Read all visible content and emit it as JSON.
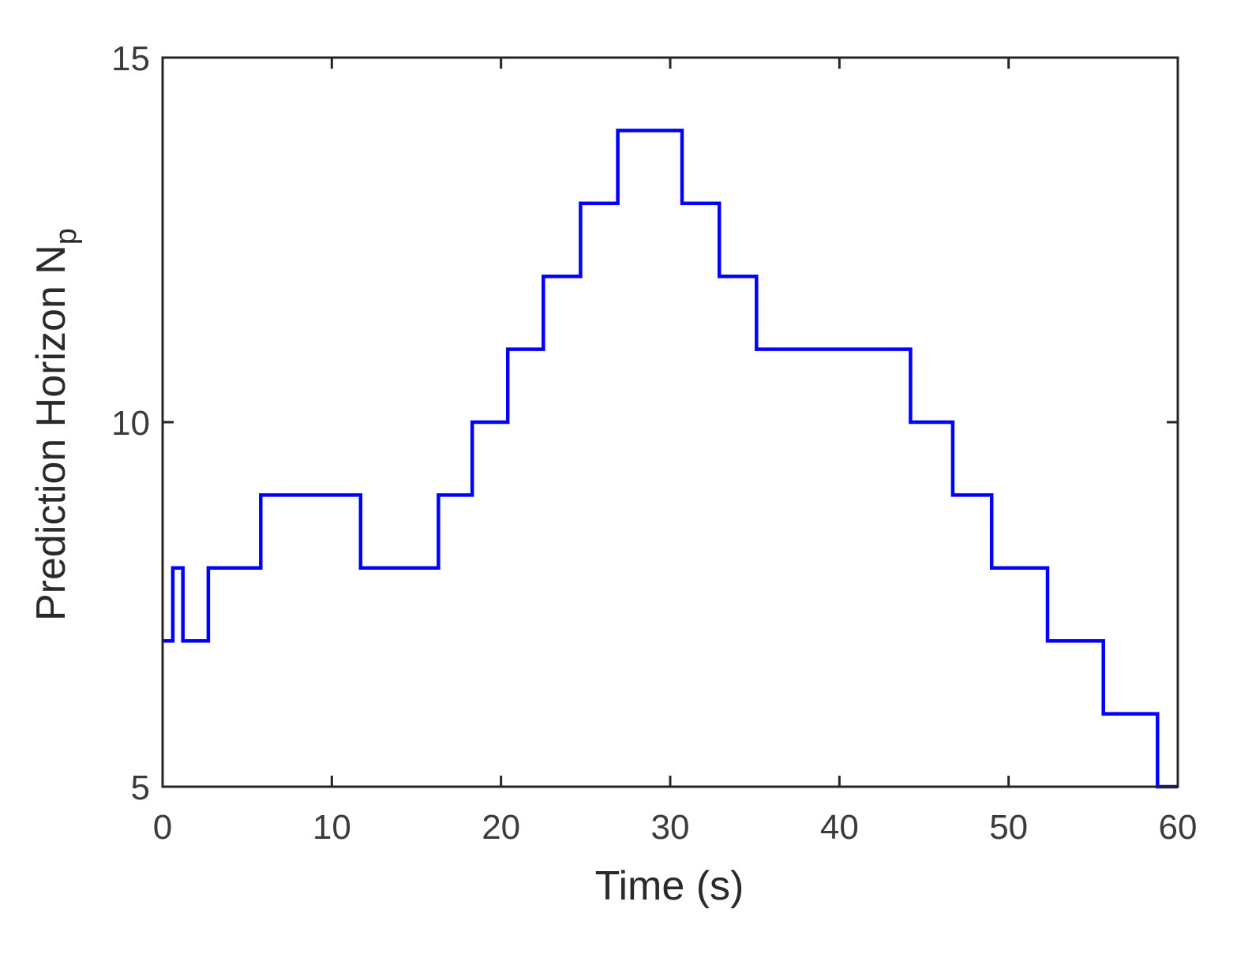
{
  "chart_data": {
    "type": "line",
    "step": true,
    "xlabel": "Time (s)",
    "ylabel": "Prediction  Horizon N",
    "ylabel_subscript": "p",
    "xlim": [
      0,
      60
    ],
    "ylim": [
      5,
      15
    ],
    "xticks": [
      0,
      10,
      20,
      30,
      40,
      50,
      60
    ],
    "yticks": [
      5,
      10,
      15
    ],
    "grid": false,
    "box": true,
    "series": [
      {
        "color": "#0000ff",
        "x": [
          0,
          0.6,
          0.6,
          1.2,
          1.2,
          2.7,
          2.7,
          5.8,
          5.8,
          11.7,
          11.7,
          16.3,
          16.3,
          18.3,
          18.3,
          20.4,
          20.4,
          22.5,
          22.5,
          24.7,
          24.7,
          26.9,
          26.9,
          30.7,
          30.7,
          32.9,
          32.9,
          35.1,
          35.1,
          44.2,
          44.2,
          46.7,
          46.7,
          49.0,
          49.0,
          52.3,
          52.3,
          55.6,
          55.6,
          58.8,
          58.8,
          60
        ],
        "y": [
          7,
          7,
          8,
          8,
          7,
          7,
          8,
          8,
          9,
          9,
          8,
          8,
          9,
          9,
          10,
          10,
          11,
          11,
          12,
          12,
          13,
          13,
          14,
          14,
          13,
          13,
          12,
          12,
          11,
          11,
          10,
          10,
          9,
          9,
          8,
          8,
          7,
          7,
          6,
          6,
          5,
          5
        ]
      }
    ]
  }
}
